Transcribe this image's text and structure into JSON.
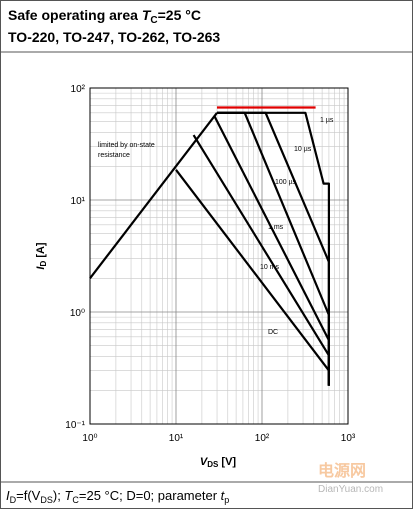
{
  "header": {
    "title": {
      "text": "Safe operating area ",
      "var": "T",
      "sub": "C",
      "rest": "=25 °C"
    },
    "packages": "TO-220, TO-247, TO-262, TO-263"
  },
  "chart_data": {
    "type": "line",
    "xlog": true,
    "ylog": true,
    "grid": true,
    "xlabel": {
      "var": "V",
      "sub": "DS",
      "rest": " [V]"
    },
    "ylabel": {
      "var": "I",
      "sub": "D",
      "rest": " [A]"
    },
    "xlim": [
      1,
      1000
    ],
    "ylim": [
      0.1,
      100
    ],
    "xticks": [
      {
        "value": 1,
        "label": "10⁰"
      },
      {
        "value": 10,
        "label": "10¹"
      },
      {
        "value": 100,
        "label": "10²"
      },
      {
        "value": 1000,
        "label": "10³"
      }
    ],
    "yticks": [
      {
        "value": 0.1,
        "label": "10⁻¹"
      },
      {
        "value": 1,
        "label": "10⁰"
      },
      {
        "value": 10,
        "label": "10¹"
      },
      {
        "value": 100,
        "label": "10²"
      }
    ],
    "xminor": [
      2,
      3,
      4,
      5,
      6,
      7,
      8,
      9,
      20,
      30,
      40,
      50,
      60,
      70,
      80,
      90,
      200,
      300,
      400,
      500,
      600,
      700,
      800,
      900
    ],
    "yminor": [
      0.2,
      0.3,
      0.4,
      0.5,
      0.6,
      0.7,
      0.8,
      0.9,
      2,
      3,
      4,
      5,
      6,
      7,
      8,
      9,
      20,
      30,
      40,
      50,
      60,
      70,
      80,
      90
    ],
    "series": [
      {
        "color": "#000000",
        "x": [
          1,
          30
        ],
        "values": [
          2,
          60
        ]
      },
      {
        "color": "#000000",
        "x": [
          30,
          320,
          520,
          600,
          600
        ],
        "values": [
          60,
          60,
          14,
          14,
          0.22
        ]
      },
      {
        "color": "#000000",
        "x": [
          30,
          110,
          600,
          600
        ],
        "values": [
          60,
          60,
          2.8,
          0.22
        ]
      },
      {
        "color": "#000000",
        "x": [
          30,
          63,
          600,
          600
        ],
        "values": [
          60,
          60,
          0.94,
          0.22
        ]
      },
      {
        "color": "#000000",
        "x": [
          28,
          600,
          600
        ],
        "values": [
          56,
          0.56,
          0.22
        ]
      },
      {
        "color": "#000000",
        "x": [
          16,
          600,
          600
        ],
        "values": [
          38,
          0.41,
          0.22
        ]
      },
      {
        "color": "#000000",
        "x": [
          10,
          600,
          600
        ],
        "values": [
          18.6,
          0.3,
          0.22
        ]
      },
      {
        "color": "#e00000",
        "x": [
          30,
          420
        ],
        "values": [
          67,
          67
        ]
      }
    ],
    "annotations": [
      "limited by on-state",
      "resistance",
      "1 µs",
      "10 µs",
      "100 µs",
      "1 ms",
      "10 ms",
      "DC"
    ]
  },
  "footer": {
    "parts": [
      [
        "I",
        "italic"
      ],
      [
        "D",
        "sub"
      ],
      [
        "=f(V",
        "normal"
      ],
      [
        "DS",
        "sub"
      ],
      [
        "); ",
        "normal"
      ],
      [
        "T",
        "italic"
      ],
      [
        "C",
        "sub"
      ],
      [
        "=25 °C; D=0; parameter ",
        "normal"
      ],
      [
        "t",
        "italic"
      ],
      [
        "p",
        "sub"
      ]
    ]
  },
  "watermark": {
    "name": "电源网",
    "site": "DianYuan.com"
  }
}
